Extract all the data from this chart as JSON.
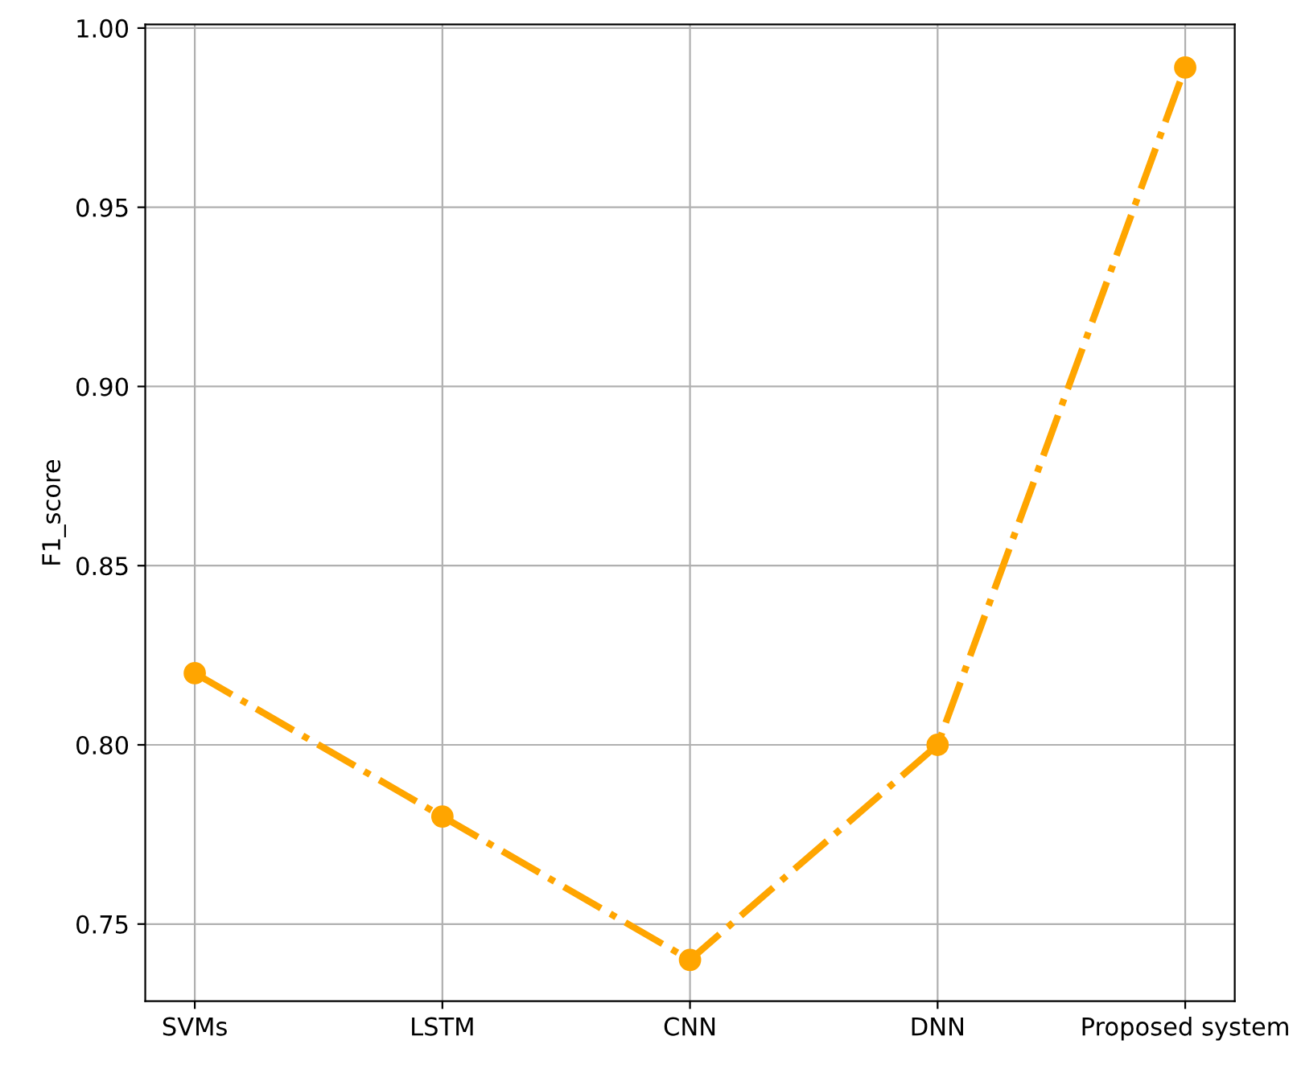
{
  "chart_data": {
    "type": "line",
    "ylabel": "F1_score",
    "categories": [
      "SVMs",
      "LSTM",
      "CNN",
      "DNN",
      "Proposed system"
    ],
    "series": [
      {
        "color": "#ffa500",
        "values": [
          0.82,
          0.78,
          0.74,
          0.8,
          0.989
        ]
      }
    ],
    "ylim": [
      0.7285,
      1.001
    ],
    "yticks": [
      {
        "value": 0.75,
        "label": "0.75"
      },
      {
        "value": 0.8,
        "label": "0.80"
      },
      {
        "value": 0.85,
        "label": "0.85"
      },
      {
        "value": 0.9,
        "label": "0.90"
      },
      {
        "value": 0.95,
        "label": "0.95"
      },
      {
        "value": 1.0,
        "label": "1.00"
      }
    ],
    "grid": true,
    "marker": "circle",
    "line_style": "dashdot"
  }
}
